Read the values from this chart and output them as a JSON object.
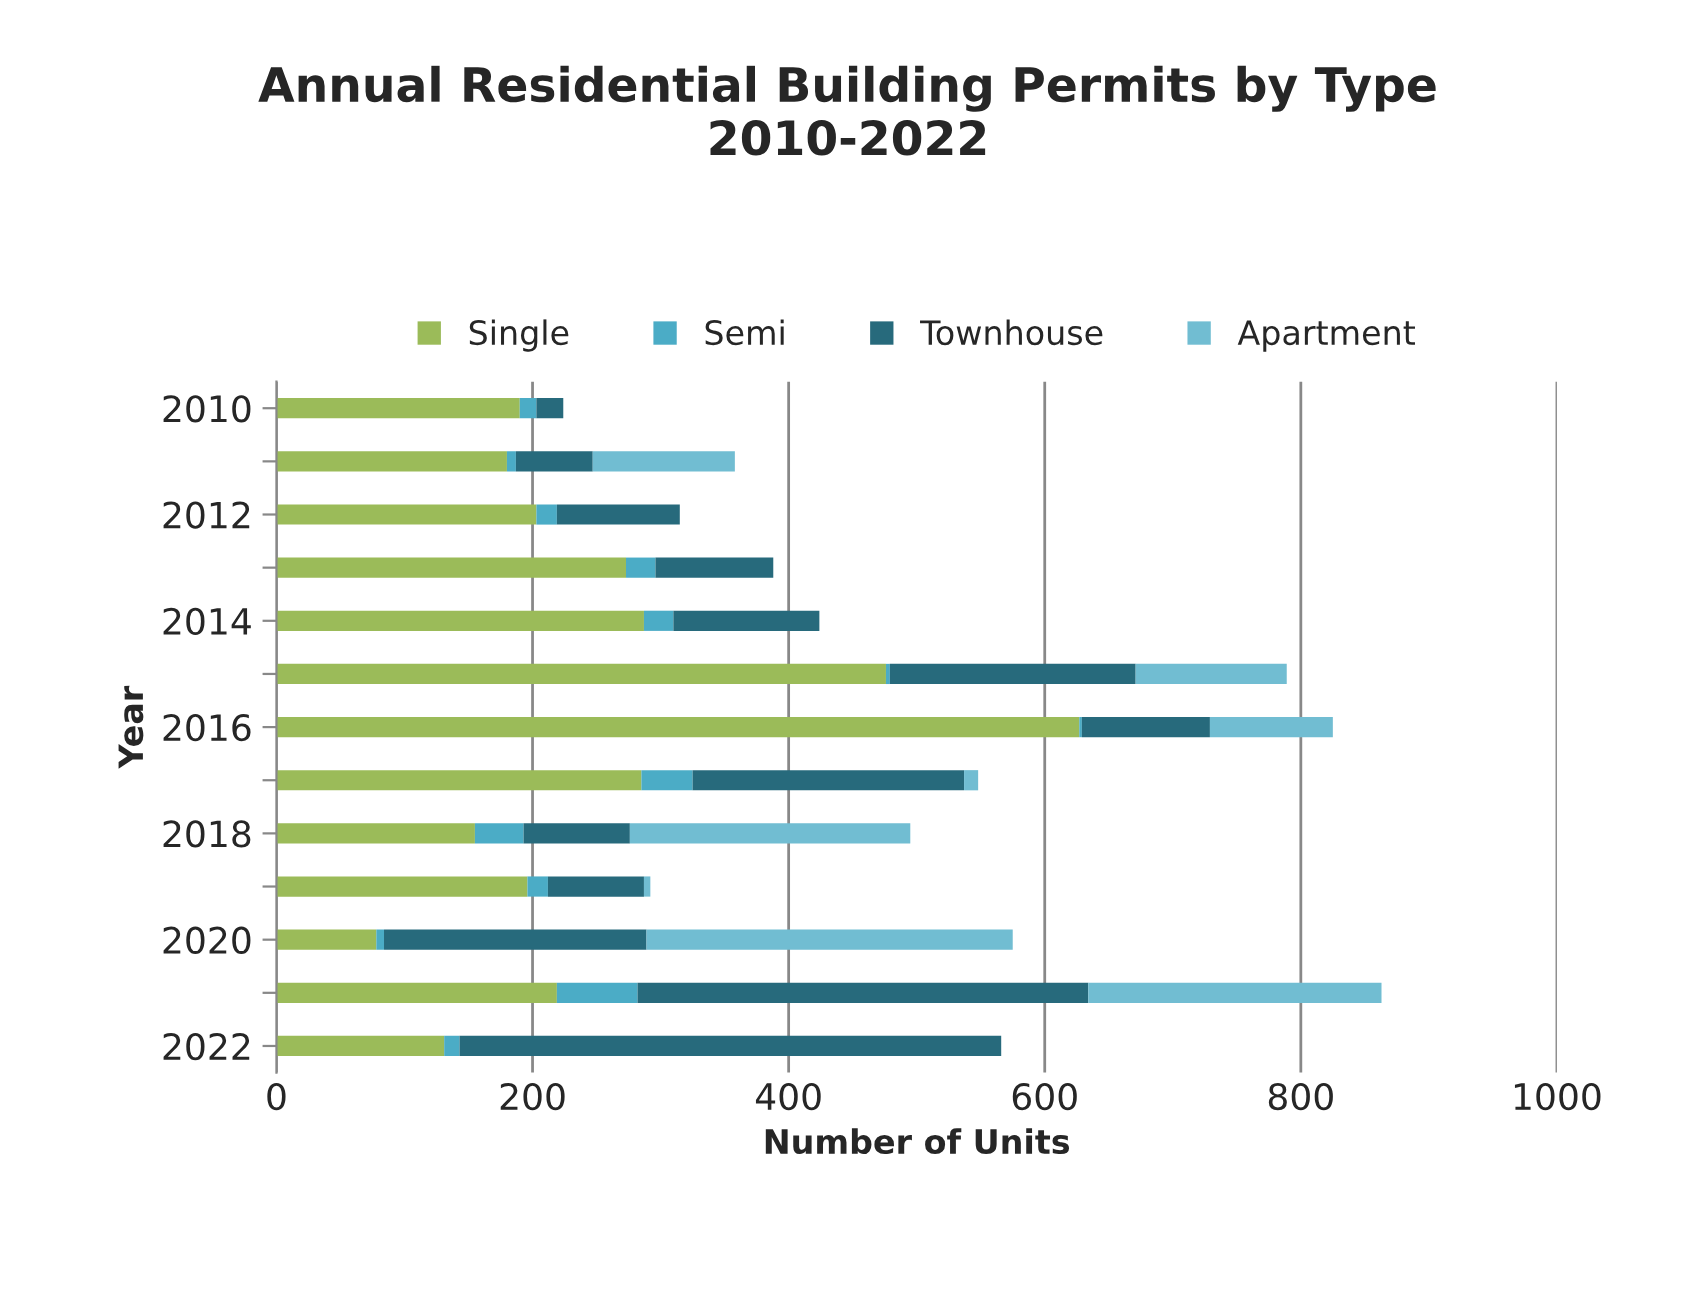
{
  "chart_data": {
    "type": "bar",
    "orientation": "horizontal",
    "stacked": true,
    "title": "Annual Residential Building Permits by Type\n2010-2022",
    "xlabel": "Number of Units",
    "ylabel": "Year",
    "categories": [
      "2010",
      null,
      "2012",
      null,
      "2014",
      null,
      "2016",
      null,
      "2018",
      null,
      "2020",
      null,
      "2022"
    ],
    "series": [
      {
        "name": "Single",
        "color": "#9bbb59",
        "values": [
          190,
          180,
          203,
          273,
          287,
          476,
          627,
          285,
          155,
          196,
          78,
          219,
          131
        ]
      },
      {
        "name": "Semi",
        "color": "#4bacc6",
        "values": [
          13,
          7,
          16,
          23,
          23,
          3,
          2,
          40,
          38,
          16,
          6,
          63,
          12
        ]
      },
      {
        "name": "Townhouse",
        "color": "#276a7c",
        "values": [
          21,
          60,
          96,
          92,
          114,
          192,
          100,
          212,
          83,
          75,
          205,
          352,
          423
        ]
      },
      {
        "name": "Apartment",
        "color": "#71bdd2",
        "values": [
          null,
          111,
          null,
          null,
          null,
          118,
          96,
          11,
          219,
          5,
          286,
          229,
          null
        ]
      }
    ],
    "xlim": [
      0,
      1000
    ],
    "xticks": [
      0,
      200,
      400,
      600,
      800,
      1000
    ],
    "grid": "x",
    "legend": "top"
  }
}
